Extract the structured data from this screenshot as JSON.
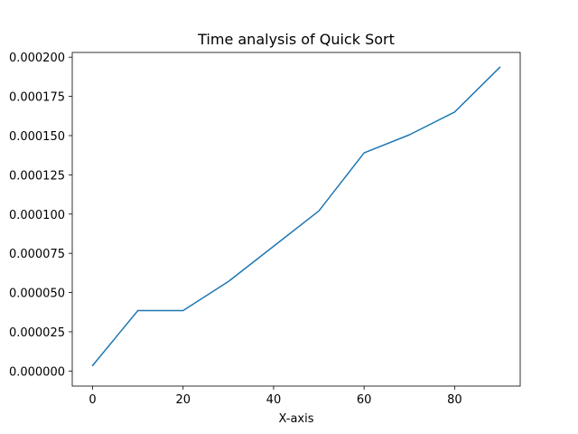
{
  "chart_data": {
    "type": "line",
    "title": "Time analysis of Quick Sort",
    "xlabel": "X-axis",
    "ylabel": "",
    "xlim": [
      -4.5,
      94.5
    ],
    "ylim": [
      -9.6e-06,
      0.000203
    ],
    "x_ticks": [
      0,
      20,
      40,
      60,
      80
    ],
    "x_tick_labels": [
      "0",
      "20",
      "40",
      "60",
      "80"
    ],
    "y_ticks": [
      0,
      2.5e-05,
      5e-05,
      7.5e-05,
      0.0001,
      0.000125,
      0.00015,
      0.000175,
      0.0002
    ],
    "y_tick_labels": [
      "0.000000",
      "0.000025",
      "0.000050",
      "0.000075",
      "0.000100",
      "0.000125",
      "0.000150",
      "0.000175",
      "0.000200"
    ],
    "grid": false,
    "series": [
      {
        "color": "#1f77b4",
        "x": [
          0,
          10,
          20,
          30,
          40,
          50,
          60,
          70,
          80,
          90
        ],
        "y": [
          3.5e-06,
          3.85e-05,
          3.85e-05,
          5.7e-05,
          7.95e-05,
          0.000102,
          0.000139,
          0.0001505,
          0.000165,
          0.0001935
        ]
      }
    ]
  }
}
